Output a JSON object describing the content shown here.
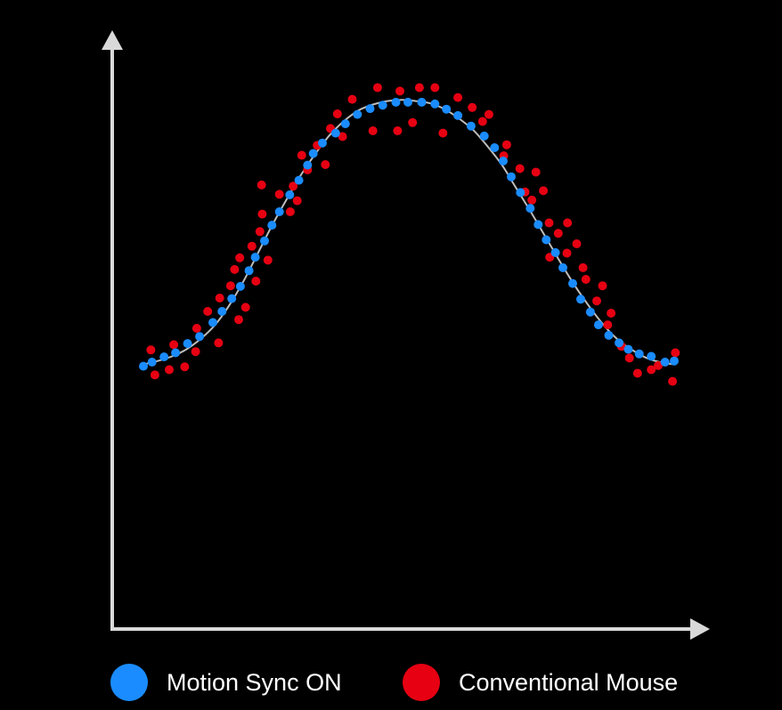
{
  "chart_data": {
    "type": "scatter",
    "title": "",
    "xlabel": "",
    "ylabel": "",
    "xlim": [
      0,
      100
    ],
    "ylim": [
      0,
      100
    ],
    "grid": false,
    "axis_color": "#d9d9d9",
    "curve_color": "#bdbdbd",
    "legend_position": "bottom",
    "series": [
      {
        "name": "Motion Sync ON",
        "color": "#1a8cff",
        "points": [
          [
            0.0,
            45.1
          ],
          [
            1.5,
            45.8
          ],
          [
            3.6,
            46.7
          ],
          [
            5.6,
            47.4
          ],
          [
            7.7,
            49.0
          ],
          [
            9.8,
            50.2
          ],
          [
            12.1,
            52.6
          ],
          [
            13.7,
            54.5
          ],
          [
            15.4,
            56.7
          ],
          [
            16.9,
            58.8
          ],
          [
            18.4,
            61.5
          ],
          [
            19.5,
            63.8
          ],
          [
            21.1,
            66.6
          ],
          [
            22.4,
            69.3
          ],
          [
            23.7,
            71.6
          ],
          [
            25.5,
            74.5
          ],
          [
            27.1,
            77.0
          ],
          [
            28.6,
            79.6
          ],
          [
            29.6,
            81.6
          ],
          [
            31.2,
            83.4
          ],
          [
            33.5,
            85.1
          ],
          [
            35.2,
            86.7
          ],
          [
            37.3,
            88.3
          ],
          [
            39.5,
            89.3
          ],
          [
            41.7,
            89.9
          ],
          [
            44.0,
            90.4
          ],
          [
            46.1,
            90.4
          ],
          [
            48.5,
            90.4
          ],
          [
            50.8,
            90.1
          ],
          [
            52.8,
            89.2
          ],
          [
            54.8,
            88.1
          ],
          [
            57.1,
            86.3
          ],
          [
            59.4,
            84.6
          ],
          [
            61.2,
            82.6
          ],
          [
            62.7,
            80.3
          ],
          [
            64.1,
            77.6
          ],
          [
            65.7,
            74.9
          ],
          [
            67.4,
            72.2
          ],
          [
            68.8,
            69.4
          ],
          [
            70.2,
            66.8
          ],
          [
            71.8,
            64.6
          ],
          [
            73.1,
            62.0
          ],
          [
            74.8,
            59.3
          ],
          [
            76.2,
            56.6
          ],
          [
            77.9,
            54.4
          ],
          [
            79.3,
            52.2
          ],
          [
            81.1,
            50.4
          ],
          [
            82.9,
            49.1
          ],
          [
            84.5,
            48.0
          ],
          [
            86.4,
            47.2
          ],
          [
            88.5,
            46.8
          ],
          [
            90.9,
            45.8
          ],
          [
            92.5,
            46.0
          ]
        ]
      },
      {
        "name": "Conventional Mouse",
        "color": "#e60012",
        "points": [
          [
            1.3,
            47.9
          ],
          [
            2.0,
            43.6
          ],
          [
            4.5,
            44.5
          ],
          [
            5.3,
            48.8
          ],
          [
            7.2,
            45.0
          ],
          [
            9.3,
            51.6
          ],
          [
            9.1,
            47.6
          ],
          [
            11.2,
            54.5
          ],
          [
            13.1,
            49.1
          ],
          [
            13.3,
            56.8
          ],
          [
            15.2,
            58.9
          ],
          [
            15.9,
            61.7
          ],
          [
            16.6,
            53.1
          ],
          [
            16.8,
            63.7
          ],
          [
            17.8,
            55.2
          ],
          [
            18.9,
            65.7
          ],
          [
            19.6,
            59.7
          ],
          [
            20.3,
            68.2
          ],
          [
            20.6,
            76.2
          ],
          [
            20.7,
            71.2
          ],
          [
            21.7,
            63.3
          ],
          [
            23.7,
            74.6
          ],
          [
            25.6,
            71.6
          ],
          [
            26.1,
            76.0
          ],
          [
            26.8,
            73.5
          ],
          [
            27.6,
            81.3
          ],
          [
            28.6,
            78.8
          ],
          [
            30.3,
            83.0
          ],
          [
            31.7,
            79.7
          ],
          [
            32.6,
            85.9
          ],
          [
            33.8,
            88.4
          ],
          [
            34.7,
            84.5
          ],
          [
            36.4,
            90.9
          ],
          [
            40.0,
            85.5
          ],
          [
            40.8,
            92.9
          ],
          [
            44.3,
            85.5
          ],
          [
            44.7,
            92.3
          ],
          [
            46.9,
            86.9
          ],
          [
            48.1,
            92.9
          ],
          [
            50.8,
            92.9
          ],
          [
            52.2,
            85.1
          ],
          [
            54.8,
            91.2
          ],
          [
            57.3,
            89.5
          ],
          [
            59.1,
            87.1
          ],
          [
            60.2,
            88.3
          ],
          [
            62.8,
            81.2
          ],
          [
            63.3,
            83.1
          ],
          [
            65.6,
            79.0
          ],
          [
            66.5,
            75.0
          ],
          [
            67.7,
            73.6
          ],
          [
            68.4,
            78.4
          ],
          [
            69.7,
            75.2
          ],
          [
            70.8,
            63.8
          ],
          [
            70.7,
            69.7
          ],
          [
            72.3,
            67.9
          ],
          [
            73.9,
            69.7
          ],
          [
            73.8,
            64.5
          ],
          [
            75.5,
            66.1
          ],
          [
            76.6,
            62.0
          ],
          [
            77.1,
            60.0
          ],
          [
            79.0,
            56.3
          ],
          [
            80.0,
            58.9
          ],
          [
            80.9,
            52.2
          ],
          [
            81.5,
            54.2
          ],
          [
            83.3,
            48.5
          ],
          [
            84.7,
            46.5
          ],
          [
            86.1,
            43.9
          ],
          [
            88.5,
            44.5
          ],
          [
            89.7,
            45.2
          ],
          [
            92.2,
            42.5
          ],
          [
            92.7,
            47.4
          ]
        ]
      }
    ],
    "curve": {
      "x": [
        0,
        2.5,
        5,
        7.5,
        10,
        12.5,
        15,
        17.5,
        20,
        22.5,
        25,
        27.5,
        30,
        32.5,
        35,
        37.5,
        40,
        42.5,
        45,
        47.5,
        50,
        52.5,
        55,
        57.5,
        60,
        62.5,
        65,
        67.5,
        70,
        72.5,
        75,
        77.5,
        80,
        82.5,
        85,
        87.5,
        90,
        92.5
      ],
      "y": [
        45.4,
        46.0,
        46.8,
        48.0,
        49.8,
        52.2,
        55.6,
        59.8,
        64.6,
        69.4,
        73.8,
        78.0,
        81.6,
        84.8,
        87.2,
        89.0,
        90.0,
        90.6,
        90.8,
        90.6,
        90.2,
        89.2,
        87.6,
        85.6,
        82.8,
        79.6,
        75.6,
        71.6,
        67.4,
        63.2,
        59.2,
        55.6,
        52.4,
        49.8,
        48.0,
        46.6,
        45.8,
        45.4
      ]
    }
  },
  "legend": {
    "items": [
      {
        "label": "Motion Sync ON",
        "color": "#1a8cff"
      },
      {
        "label": "Conventional Mouse",
        "color": "#e60012"
      }
    ]
  }
}
